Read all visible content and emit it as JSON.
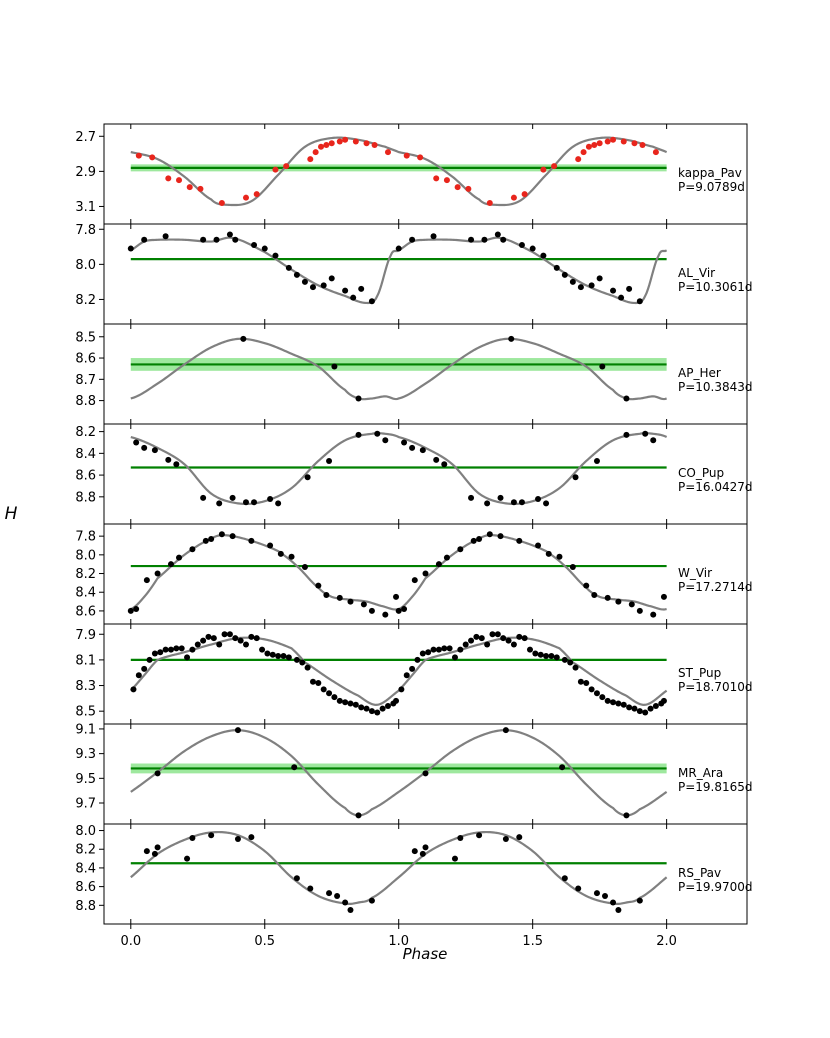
{
  "chart_data": {
    "type": "scatter",
    "xlabel": "Phase",
    "ylabel": "H",
    "xlim": [
      -0.1,
      2.3
    ],
    "x_ticks": [
      0.0,
      0.5,
      1.0,
      1.5,
      2.0
    ],
    "x_tick_labels": [
      "0.0",
      "0.5",
      "1.0",
      "1.5",
      "2.0"
    ],
    "y_inverted": true,
    "colors": {
      "curve": "#808080",
      "mean_line": "#008000",
      "mean_band": "#90ee90",
      "points_default": "#000000",
      "points_kappa": "#e8251c"
    },
    "panels": [
      {
        "star": "kappa_Pav",
        "period": "P=9.0789d",
        "ylim": [
          3.2,
          2.63
        ],
        "y_ticks": [
          2.7,
          2.9,
          3.1
        ],
        "y_tick_labels": [
          "2.7",
          "2.9",
          "3.1"
        ],
        "mean": 2.88,
        "band_halfwidth": 0.02,
        "point_color": "#e8251c",
        "curve_phase": [
          0,
          0.1,
          0.2,
          0.3,
          0.35,
          0.45,
          0.55,
          0.65,
          0.75,
          0.85,
          0.95,
          1.0
        ],
        "curve_mag": [
          2.79,
          2.83,
          2.93,
          3.06,
          3.09,
          3.07,
          2.92,
          2.76,
          2.71,
          2.72,
          2.76,
          2.79
        ],
        "points": [
          [
            0.03,
            2.81
          ],
          [
            0.08,
            2.82
          ],
          [
            0.14,
            2.94
          ],
          [
            0.18,
            2.95
          ],
          [
            0.22,
            2.99
          ],
          [
            0.26,
            3.0
          ],
          [
            0.34,
            3.08
          ],
          [
            0.43,
            3.05
          ],
          [
            0.47,
            3.03
          ],
          [
            0.54,
            2.89
          ],
          [
            0.58,
            2.87
          ],
          [
            0.67,
            2.83
          ],
          [
            0.69,
            2.79
          ],
          [
            0.71,
            2.76
          ],
          [
            0.73,
            2.75
          ],
          [
            0.75,
            2.74
          ],
          [
            0.78,
            2.73
          ],
          [
            0.8,
            2.72
          ],
          [
            0.84,
            2.73
          ],
          [
            0.88,
            2.74
          ],
          [
            0.91,
            2.75
          ],
          [
            0.96,
            2.79
          ]
        ]
      },
      {
        "star": "AL_Vir",
        "period": "P=10.3061d",
        "ylim": [
          8.34,
          7.77
        ],
        "y_ticks": [
          7.8,
          8.0,
          8.2
        ],
        "y_tick_labels": [
          "7.8",
          "8.0",
          "8.2"
        ],
        "mean": 7.97,
        "band_halfwidth": 0,
        "curve_phase": [
          0,
          0.05,
          0.1,
          0.2,
          0.3,
          0.38,
          0.5,
          0.6,
          0.7,
          0.8,
          0.88,
          0.92,
          0.97,
          1.0
        ],
        "curve_mag": [
          7.92,
          7.87,
          7.86,
          7.86,
          7.87,
          7.85,
          7.93,
          8.03,
          8.12,
          8.18,
          8.22,
          8.18,
          7.95,
          7.92
        ],
        "points": [
          [
            0.0,
            7.91
          ],
          [
            0.05,
            7.86
          ],
          [
            0.13,
            7.84
          ],
          [
            0.27,
            7.86
          ],
          [
            0.32,
            7.86
          ],
          [
            0.37,
            7.83
          ],
          [
            0.39,
            7.86
          ],
          [
            0.46,
            7.89
          ],
          [
            0.5,
            7.91
          ],
          [
            0.54,
            7.95
          ],
          [
            0.59,
            8.02
          ],
          [
            0.62,
            8.06
          ],
          [
            0.65,
            8.1
          ],
          [
            0.68,
            8.13
          ],
          [
            0.72,
            8.12
          ],
          [
            0.75,
            8.08
          ],
          [
            0.8,
            8.15
          ],
          [
            0.83,
            8.19
          ],
          [
            0.86,
            8.14
          ],
          [
            0.9,
            8.21
          ]
        ]
      },
      {
        "star": "AP_Her",
        "period": "P=10.3843d",
        "ylim": [
          8.91,
          8.44
        ],
        "y_ticks": [
          8.5,
          8.6,
          8.7,
          8.8
        ],
        "y_tick_labels": [
          "8.5",
          "8.6",
          "8.7",
          "8.8"
        ],
        "mean": 8.63,
        "band_halfwidth": 0.03,
        "curve_phase": [
          0,
          0.1,
          0.2,
          0.3,
          0.4,
          0.5,
          0.6,
          0.7,
          0.8,
          0.85,
          0.9,
          0.95,
          1.0
        ],
        "curve_mag": [
          8.79,
          8.72,
          8.63,
          8.55,
          8.51,
          8.53,
          8.58,
          8.64,
          8.75,
          8.79,
          8.79,
          8.78,
          8.79
        ],
        "points": [
          [
            0.42,
            8.51
          ],
          [
            0.76,
            8.64
          ],
          [
            0.85,
            8.79
          ]
        ]
      },
      {
        "star": "CO_Pup",
        "period": "P=16.0427d",
        "ylim": [
          9.05,
          8.13
        ],
        "y_ticks": [
          8.2,
          8.4,
          8.6,
          8.8
        ],
        "y_tick_labels": [
          "8.2",
          "8.4",
          "8.6",
          "8.8"
        ],
        "mean": 8.53,
        "band_halfwidth": 0,
        "curve_phase": [
          0,
          0.1,
          0.2,
          0.3,
          0.4,
          0.5,
          0.6,
          0.7,
          0.8,
          0.9,
          0.95,
          1.0
        ],
        "curve_mag": [
          8.25,
          8.35,
          8.5,
          8.77,
          8.86,
          8.84,
          8.72,
          8.47,
          8.28,
          8.22,
          8.22,
          8.25
        ],
        "points": [
          [
            0.02,
            8.3
          ],
          [
            0.05,
            8.35
          ],
          [
            0.09,
            8.37
          ],
          [
            0.14,
            8.46
          ],
          [
            0.17,
            8.5
          ],
          [
            0.27,
            8.81
          ],
          [
            0.33,
            8.86
          ],
          [
            0.38,
            8.81
          ],
          [
            0.43,
            8.85
          ],
          [
            0.46,
            8.85
          ],
          [
            0.52,
            8.82
          ],
          [
            0.55,
            8.86
          ],
          [
            0.66,
            8.62
          ],
          [
            0.74,
            8.47
          ],
          [
            0.85,
            8.23
          ],
          [
            0.92,
            8.22
          ],
          [
            0.95,
            8.28
          ]
        ]
      },
      {
        "star": "W_Vir",
        "period": "P=17.2714d",
        "ylim": [
          8.74,
          7.67
        ],
        "y_ticks": [
          7.8,
          8.0,
          8.2,
          8.4,
          8.6
        ],
        "y_tick_labels": [
          "7.8",
          "8.0",
          "8.2",
          "8.4",
          "8.6"
        ],
        "mean": 8.12,
        "band_halfwidth": 0,
        "curve_phase": [
          0,
          0.05,
          0.1,
          0.2,
          0.3,
          0.35,
          0.45,
          0.55,
          0.62,
          0.7,
          0.75,
          0.82,
          0.88,
          0.94,
          1.0
        ],
        "curve_mag": [
          8.58,
          8.45,
          8.25,
          8.0,
          7.83,
          7.79,
          7.85,
          7.96,
          8.12,
          8.35,
          8.45,
          8.48,
          8.5,
          8.55,
          8.58
        ],
        "points": [
          [
            0.0,
            8.6
          ],
          [
            0.02,
            8.58
          ],
          [
            0.06,
            8.27
          ],
          [
            0.1,
            8.2
          ],
          [
            0.15,
            8.1
          ],
          [
            0.18,
            8.03
          ],
          [
            0.23,
            7.94
          ],
          [
            0.28,
            7.85
          ],
          [
            0.3,
            7.83
          ],
          [
            0.34,
            7.78
          ],
          [
            0.38,
            7.8
          ],
          [
            0.45,
            7.85
          ],
          [
            0.52,
            7.9
          ],
          [
            0.56,
            7.99
          ],
          [
            0.6,
            8.02
          ],
          [
            0.65,
            8.13
          ],
          [
            0.7,
            8.33
          ],
          [
            0.73,
            8.43
          ],
          [
            0.78,
            8.46
          ],
          [
            0.82,
            8.5
          ],
          [
            0.87,
            8.53
          ],
          [
            0.9,
            8.6
          ],
          [
            0.95,
            8.64
          ],
          [
            0.99,
            8.45
          ]
        ]
      },
      {
        "star": "ST_Pup",
        "period": "P=18.7010d",
        "ylim": [
          8.6,
          7.82
        ],
        "y_ticks": [
          7.9,
          8.1,
          8.3,
          8.5
        ],
        "y_tick_labels": [
          "7.9",
          "8.1",
          "8.3",
          "8.5"
        ],
        "mean": 8.1,
        "band_halfwidth": 0,
        "curve_phase": [
          0,
          0.05,
          0.1,
          0.2,
          0.3,
          0.4,
          0.5,
          0.6,
          0.65,
          0.75,
          0.85,
          0.92,
          1.0
        ],
        "curve_mag": [
          8.34,
          8.22,
          8.1,
          8.04,
          7.98,
          7.93,
          7.94,
          8.01,
          8.12,
          8.26,
          8.38,
          8.45,
          8.34
        ],
        "points": [
          [
            0.01,
            8.33
          ],
          [
            0.03,
            8.22
          ],
          [
            0.05,
            8.17
          ],
          [
            0.07,
            8.1
          ],
          [
            0.09,
            8.05
          ],
          [
            0.11,
            8.04
          ],
          [
            0.13,
            8.02
          ],
          [
            0.15,
            8.02
          ],
          [
            0.17,
            8.01
          ],
          [
            0.19,
            8.01
          ],
          [
            0.21,
            8.08
          ],
          [
            0.23,
            8.02
          ],
          [
            0.25,
            7.98
          ],
          [
            0.27,
            7.95
          ],
          [
            0.29,
            7.92
          ],
          [
            0.31,
            7.93
          ],
          [
            0.33,
            7.98
          ],
          [
            0.35,
            7.9
          ],
          [
            0.37,
            7.9
          ],
          [
            0.39,
            7.93
          ],
          [
            0.41,
            7.95
          ],
          [
            0.43,
            7.98
          ],
          [
            0.45,
            7.92
          ],
          [
            0.47,
            7.93
          ],
          [
            0.49,
            8.02
          ],
          [
            0.51,
            8.05
          ],
          [
            0.53,
            8.06
          ],
          [
            0.55,
            8.07
          ],
          [
            0.57,
            8.07
          ],
          [
            0.59,
            8.08
          ],
          [
            0.62,
            8.1
          ],
          [
            0.64,
            8.12
          ],
          [
            0.66,
            8.16
          ],
          [
            0.68,
            8.27
          ],
          [
            0.7,
            8.28
          ],
          [
            0.72,
            8.33
          ],
          [
            0.74,
            8.36
          ],
          [
            0.76,
            8.39
          ],
          [
            0.78,
            8.42
          ],
          [
            0.8,
            8.43
          ],
          [
            0.82,
            8.44
          ],
          [
            0.84,
            8.45
          ],
          [
            0.86,
            8.47
          ],
          [
            0.88,
            8.48
          ],
          [
            0.9,
            8.5
          ],
          [
            0.92,
            8.51
          ],
          [
            0.94,
            8.48
          ],
          [
            0.96,
            8.46
          ],
          [
            0.98,
            8.44
          ],
          [
            0.99,
            8.42
          ]
        ]
      },
      {
        "star": "MR_Ara",
        "period": "P=19.8165d",
        "ylim": [
          9.87,
          9.06
        ],
        "y_ticks": [
          9.1,
          9.3,
          9.5,
          9.7
        ],
        "y_tick_labels": [
          "9.1",
          "9.3",
          "9.5",
          "9.7"
        ],
        "mean": 9.42,
        "band_halfwidth": 0.04,
        "curve_phase": [
          0,
          0.1,
          0.2,
          0.3,
          0.4,
          0.5,
          0.6,
          0.7,
          0.8,
          0.85,
          0.9,
          1.0
        ],
        "curve_mag": [
          9.61,
          9.45,
          9.28,
          9.16,
          9.11,
          9.17,
          9.32,
          9.55,
          9.74,
          9.8,
          9.75,
          9.61
        ],
        "points": [
          [
            0.1,
            9.46
          ],
          [
            0.4,
            9.11
          ],
          [
            0.61,
            9.41
          ],
          [
            0.85,
            9.8
          ]
        ]
      },
      {
        "star": "RS_Pav",
        "period": "P=19.9700d",
        "ylim": [
          9.0,
          7.93
        ],
        "y_ticks": [
          8.0,
          8.2,
          8.4,
          8.6,
          8.8
        ],
        "y_tick_labels": [
          "8.0",
          "8.2",
          "8.4",
          "8.6",
          "8.8"
        ],
        "mean": 8.35,
        "band_halfwidth": 0,
        "curve_phase": [
          0,
          0.1,
          0.2,
          0.3,
          0.4,
          0.5,
          0.6,
          0.7,
          0.8,
          0.85,
          0.9,
          1.0
        ],
        "curve_mag": [
          8.5,
          8.25,
          8.1,
          8.02,
          8.05,
          8.22,
          8.5,
          8.7,
          8.78,
          8.77,
          8.72,
          8.5
        ],
        "points": [
          [
            0.06,
            8.22
          ],
          [
            0.09,
            8.25
          ],
          [
            0.1,
            8.18
          ],
          [
            0.21,
            8.3
          ],
          [
            0.23,
            8.08
          ],
          [
            0.3,
            8.05
          ],
          [
            0.4,
            8.09
          ],
          [
            0.45,
            8.07
          ],
          [
            0.62,
            8.51
          ],
          [
            0.67,
            8.62
          ],
          [
            0.74,
            8.67
          ],
          [
            0.77,
            8.7
          ],
          [
            0.8,
            8.77
          ],
          [
            0.82,
            8.85
          ],
          [
            0.9,
            8.75
          ]
        ]
      }
    ]
  }
}
